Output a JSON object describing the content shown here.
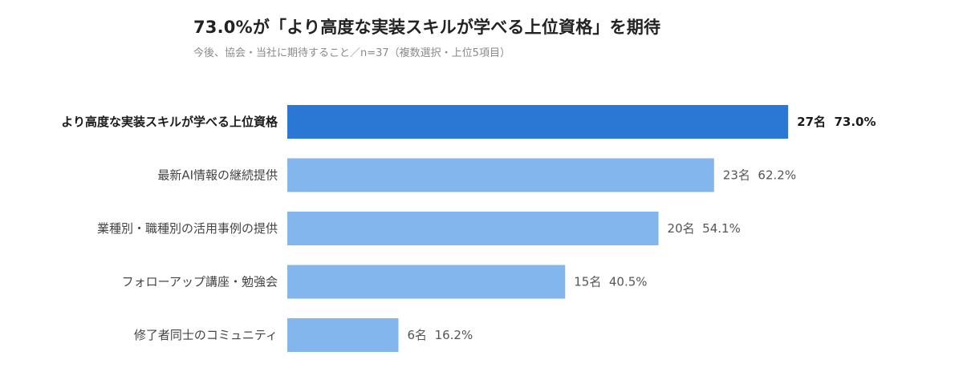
{
  "chart_data": {
    "type": "bar",
    "orientation": "horizontal",
    "title": "73.0%が「より高度な実装スキルが学べる上位資格」を期待",
    "subtitle": "今後、協会・当社に期待すること／n=37（複数選択・上位5項目）",
    "categories": [
      "より高度な実装スキルが学べる上位資格",
      "最新AI情報の継続提供",
      "業種別・職種別の活用事例の提供",
      "フォローアップ講座・勉強会",
      "修了者同士のコミュニティ"
    ],
    "counts": [
      27,
      23,
      20,
      15,
      6
    ],
    "values": [
      73.0,
      62.2,
      54.1,
      40.5,
      16.2
    ],
    "value_labels": [
      "27名  73.0%",
      "23名  62.2%",
      "20名  54.1%",
      "15名  40.5%",
      "6名  16.2%"
    ],
    "highlight_index": 0,
    "xlim": [
      0,
      100
    ],
    "grid": false,
    "legend": "none",
    "colors": {
      "highlight": "#2a78d3",
      "default": "#84b6ee"
    }
  }
}
